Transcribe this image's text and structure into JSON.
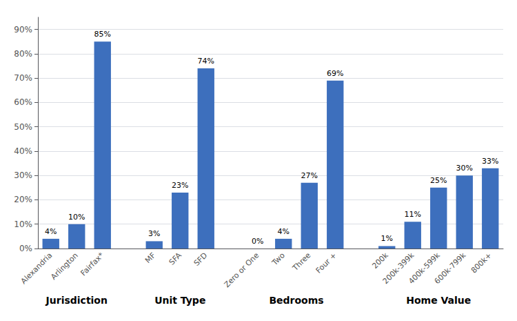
{
  "chart_data": {
    "type": "bar",
    "groups": [
      {
        "label": "Jurisdiction",
        "categories": [
          "Alexandria",
          "Arlington",
          "Fairfax*"
        ],
        "values": [
          4,
          10,
          85
        ],
        "value_labels": [
          "4%",
          "10%",
          "85%"
        ]
      },
      {
        "label": "Unit Type",
        "categories": [
          "MF",
          "SFA",
          "SFD"
        ],
        "values": [
          3,
          23,
          74
        ],
        "value_labels": [
          "3%",
          "23%",
          "74%"
        ]
      },
      {
        "label": "Bedrooms",
        "categories": [
          "Zero or One",
          "Two",
          "Three",
          "Four +"
        ],
        "values": [
          0,
          4,
          27,
          69
        ],
        "value_labels": [
          "0%",
          "4%",
          "27%",
          "69%"
        ]
      },
      {
        "label": "Home Value",
        "categories": [
          "200k",
          "200k-399k",
          "400k-599k",
          "600k-799k",
          "800k+"
        ],
        "values": [
          1,
          11,
          25,
          30,
          33
        ],
        "value_labels": [
          "1%",
          "11%",
          "25%",
          "30%",
          "33%"
        ]
      }
    ],
    "color": "#3d6fbd",
    "ylim": [
      0,
      95
    ],
    "yticks": [
      {
        "value": 0,
        "label": "0%"
      },
      {
        "value": 10,
        "label": "10%"
      },
      {
        "value": 20,
        "label": "20%"
      },
      {
        "value": 30,
        "label": "30%"
      },
      {
        "value": 40,
        "label": "40%"
      },
      {
        "value": 50,
        "label": "50%"
      },
      {
        "value": 60,
        "label": "60%"
      },
      {
        "value": 70,
        "label": "70%"
      },
      {
        "value": 80,
        "label": "80%"
      },
      {
        "value": 90,
        "label": "90%"
      }
    ],
    "grid": true,
    "data_labels": true
  }
}
